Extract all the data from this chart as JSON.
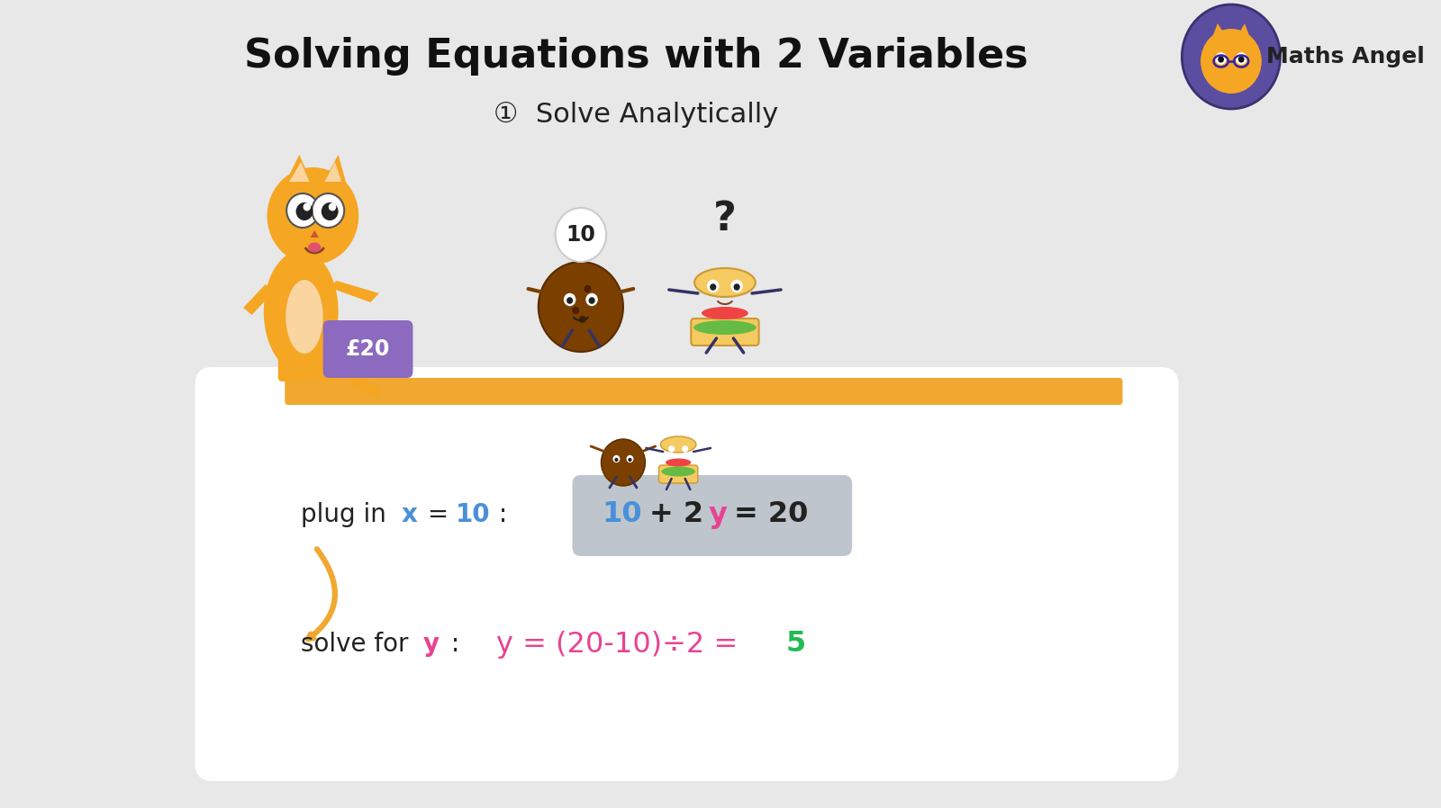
{
  "bg_color": "#e8e8e8",
  "title": "Solving Equations with 2 Variables",
  "subtitle": "①  Solve Analytically",
  "title_fontsize": 32,
  "subtitle_fontsize": 22,
  "title_color": "#111111",
  "subtitle_color": "#222222",
  "white_box_color": "#ffffff",
  "shelf_color": "#f0a830",
  "price_tag_color": "#8b6abf",
  "price_tag_text": "£20",
  "cookie_label": "10",
  "sandwich_label": "?",
  "equation_box_color": "#bec5cc",
  "arrow_color": "#f0a830",
  "maths_angel_text": "Maths Angel",
  "maths_angel_color": "#222222",
  "cat_color": "#f5a623",
  "cat_tummy_color": "#fad5a0",
  "blue_color": "#4a90d9",
  "pink_color": "#e84393",
  "green_color": "#22bb55",
  "dark_color": "#222222"
}
